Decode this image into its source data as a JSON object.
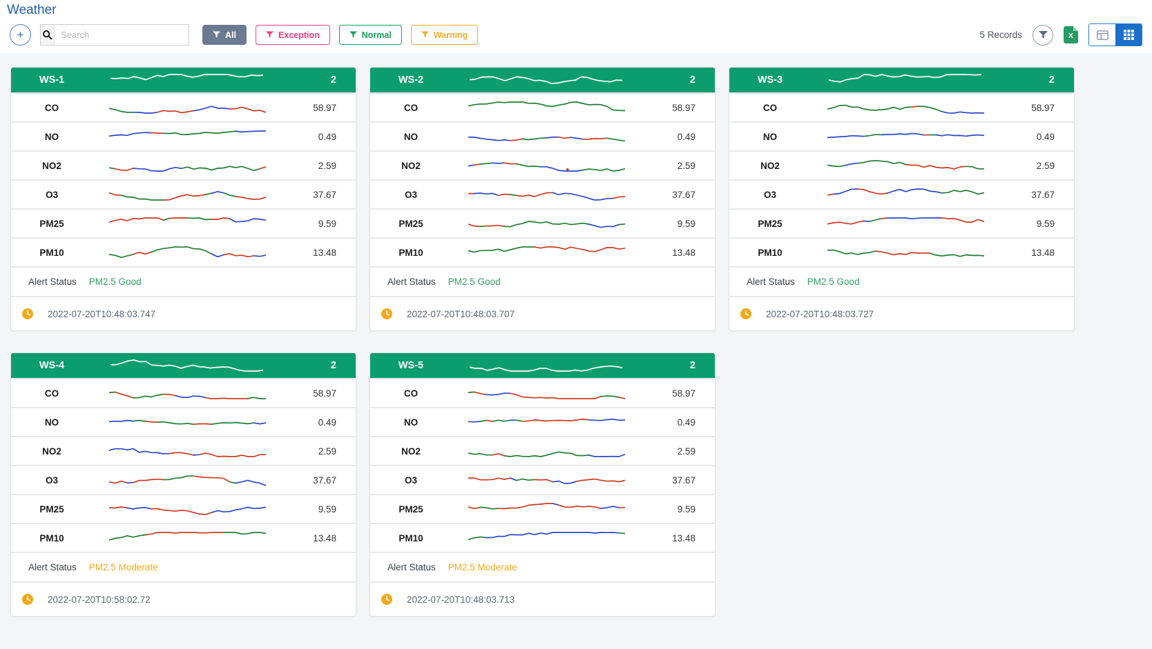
{
  "page": {
    "title": "Weather"
  },
  "toolbar": {
    "add_label": "+",
    "search": {
      "placeholder": "Search"
    },
    "filters": [
      {
        "label": "All"
      },
      {
        "label": "Exception"
      },
      {
        "label": "Normal"
      },
      {
        "label": "Warning"
      }
    ],
    "records_label": "5 Records",
    "excel_label": "x"
  },
  "colors": {
    "title_blue": "#1f5fa8",
    "card_header_green": "#0c9d6e",
    "filter_all_bg": "#6b7a90",
    "filter_exception": "#f23d80",
    "filter_normal": "#159e5c",
    "filter_warning": "#f0ad2d",
    "alert_good": "#2f9e60",
    "alert_moderate": "#f2a81d",
    "toggle_active_blue": "#1a6fc9",
    "excel_green": "#279c63",
    "clock_amber": "#f2a81d"
  },
  "sparkline": {
    "palette": [
      "#cc3a1e",
      "#1f7d32",
      "#2a46c9"
    ],
    "header_color": "#ffffff"
  },
  "cards": [
    {
      "name": "WS-1",
      "count": "2",
      "header_seed": 101,
      "rows": [
        {
          "label": "CO",
          "value": "58.97",
          "seed": 102,
          "bias": 1
        },
        {
          "label": "NO",
          "value": "0.49",
          "seed": 103,
          "bias": 2,
          "amp": 0.5
        },
        {
          "label": "NO2",
          "value": "2.59",
          "seed": 104,
          "bias": 1
        },
        {
          "label": "O3",
          "value": "37.67",
          "seed": 105,
          "bias": 0
        },
        {
          "label": "PM25",
          "value": "9.59",
          "seed": 106,
          "bias": 0
        },
        {
          "label": "PM10",
          "value": "13.48",
          "seed": 107,
          "bias": 1
        }
      ],
      "alert_label": "Alert Status",
      "alert_value": "PM2.5 Good",
      "alert_level": "good",
      "timestamp": "2022-07-20T10:48:03.747"
    },
    {
      "name": "WS-2",
      "count": "2",
      "header_seed": 201,
      "rows": [
        {
          "label": "CO",
          "value": "58.97",
          "seed": 202,
          "bias": 1
        },
        {
          "label": "NO",
          "value": "0.49",
          "seed": 203,
          "bias": 2,
          "amp": 0.5
        },
        {
          "label": "NO2",
          "value": "2.59",
          "seed": 204,
          "bias": 2,
          "dot": true
        },
        {
          "label": "O3",
          "value": "37.67",
          "seed": 205,
          "bias": 0
        },
        {
          "label": "PM25",
          "value": "9.59",
          "seed": 206,
          "bias": 0
        },
        {
          "label": "PM10",
          "value": "13.48",
          "seed": 207,
          "bias": 1
        }
      ],
      "alert_label": "Alert Status",
      "alert_value": "PM2.5 Good",
      "alert_level": "good",
      "timestamp": "2022-07-20T10:48:03.707"
    },
    {
      "name": "WS-3",
      "count": "2",
      "header_seed": 301,
      "rows": [
        {
          "label": "CO",
          "value": "58.97",
          "seed": 302,
          "bias": 1
        },
        {
          "label": "NO",
          "value": "0.49",
          "seed": 303,
          "bias": 2,
          "amp": 0.5
        },
        {
          "label": "NO2",
          "value": "2.59",
          "seed": 304,
          "bias": 1
        },
        {
          "label": "O3",
          "value": "37.67",
          "seed": 305,
          "bias": 0
        },
        {
          "label": "PM25",
          "value": "9.59",
          "seed": 306,
          "bias": 0
        },
        {
          "label": "PM10",
          "value": "13.48",
          "seed": 307,
          "bias": 1
        }
      ],
      "alert_label": "Alert Status",
      "alert_value": "PM2.5 Good",
      "alert_level": "good",
      "timestamp": "2022-07-20T10:48:03.727"
    },
    {
      "name": "WS-4",
      "count": "2",
      "header_seed": 401,
      "rows": [
        {
          "label": "CO",
          "value": "58.97",
          "seed": 402,
          "bias": 1
        },
        {
          "label": "NO",
          "value": "0.49",
          "seed": 403,
          "bias": 2,
          "amp": 0.5
        },
        {
          "label": "NO2",
          "value": "2.59",
          "seed": 404,
          "bias": 2
        },
        {
          "label": "O3",
          "value": "37.67",
          "seed": 405,
          "bias": 0
        },
        {
          "label": "PM25",
          "value": "9.59",
          "seed": 406,
          "bias": 0
        },
        {
          "label": "PM10",
          "value": "13.48",
          "seed": 407,
          "bias": 1
        }
      ],
      "alert_label": "Alert Status",
      "alert_value": "PM2.5 Moderate",
      "alert_level": "moderate",
      "timestamp": "2022-07-20T10:58:02.72"
    },
    {
      "name": "WS-5",
      "count": "2",
      "header_seed": 501,
      "rows": [
        {
          "label": "CO",
          "value": "58.97",
          "seed": 502,
          "bias": 1
        },
        {
          "label": "NO",
          "value": "0.49",
          "seed": 503,
          "bias": 2,
          "amp": 0.5
        },
        {
          "label": "NO2",
          "value": "2.59",
          "seed": 504,
          "bias": 1
        },
        {
          "label": "O3",
          "value": "37.67",
          "seed": 505,
          "bias": 0
        },
        {
          "label": "PM25",
          "value": "9.59",
          "seed": 506,
          "bias": 0
        },
        {
          "label": "PM10",
          "value": "13.48",
          "seed": 507,
          "bias": 1
        }
      ],
      "alert_label": "Alert Status",
      "alert_value": "PM2.5 Moderate",
      "alert_level": "moderate",
      "timestamp": "2022-07-20T10:48:03.713"
    }
  ]
}
